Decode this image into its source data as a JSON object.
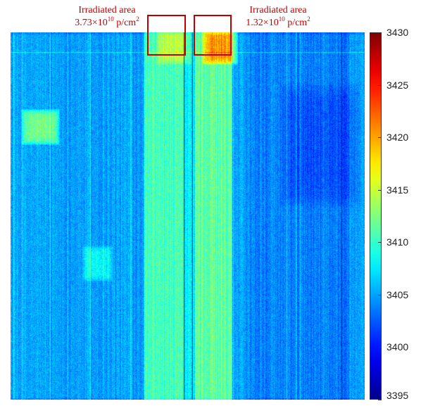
{
  "chart_data": {
    "type": "heatmap",
    "title": "",
    "xlabel": "",
    "ylabel": "",
    "colormap": "jet",
    "color_range": [
      3395,
      3430
    ],
    "colorbar_ticks": [
      "3430",
      "3425",
      "3420",
      "3415",
      "3410",
      "3405",
      "3400",
      "3395"
    ],
    "colorbar_tick_values": [
      3430,
      3425,
      3420,
      3415,
      3410,
      3405,
      3400,
      3395
    ],
    "background_level": 3405,
    "annotations": [
      {
        "label": "Irradiated area",
        "fluence_prefix": "3.73×10",
        "fluence_exp": "10",
        "fluence_unit": " p/cm",
        "fluence_unit_exp": "2"
      },
      {
        "label": "Irradiated area",
        "fluence_prefix": "1.32×10",
        "fluence_exp": "10",
        "fluence_unit": " p/cm",
        "fluence_unit_exp": "2"
      }
    ]
  },
  "colors": {
    "annotation": "#c00000",
    "jet_stops": [
      "#00008f",
      "#0000ff",
      "#0080ff",
      "#00ffff",
      "#80ff80",
      "#ffff00",
      "#ff8000",
      "#ff0000",
      "#800000"
    ]
  }
}
